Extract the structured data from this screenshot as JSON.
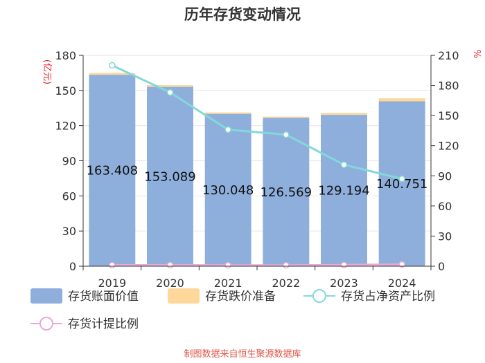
{
  "chart_data": {
    "type": "bar",
    "title": "历年存货变动情况",
    "categories": [
      "2019",
      "2020",
      "2021",
      "2022",
      "2023",
      "2024"
    ],
    "series": [
      {
        "name": "存货账面价值",
        "type": "bar",
        "axis": "left",
        "color": "#8eaedb",
        "values": [
          163.408,
          153.089,
          130.048,
          126.569,
          129.194,
          140.751
        ]
      },
      {
        "name": "存货跌价准备",
        "type": "bar",
        "axis": "left",
        "stack": true,
        "color": "#fdd89a",
        "values": [
          1.6,
          1.5,
          1.2,
          1.1,
          1.6,
          2.6
        ]
      },
      {
        "name": "存货占净资产比例",
        "type": "line",
        "axis": "right",
        "color": "#84d8d8",
        "values": [
          200,
          173,
          136,
          131,
          101,
          87
        ]
      },
      {
        "name": "存货计提比例",
        "type": "line",
        "axis": "right",
        "color": "#e6aad5",
        "values": [
          1.0,
          1.0,
          0.9,
          0.9,
          1.2,
          1.8
        ]
      }
    ],
    "left_axis": {
      "unit": "(亿元)",
      "ylim": [
        0,
        180
      ],
      "ticks": [
        0,
        30,
        60,
        90,
        120,
        150,
        180
      ]
    },
    "right_axis": {
      "unit": "%",
      "ylim": [
        0,
        210
      ],
      "ticks": [
        0,
        30,
        60,
        90,
        120,
        150,
        180,
        210
      ]
    },
    "grid": true,
    "legend_position": "bottom"
  },
  "footer": {
    "source": "制图数据来自恒生聚源数据库"
  }
}
